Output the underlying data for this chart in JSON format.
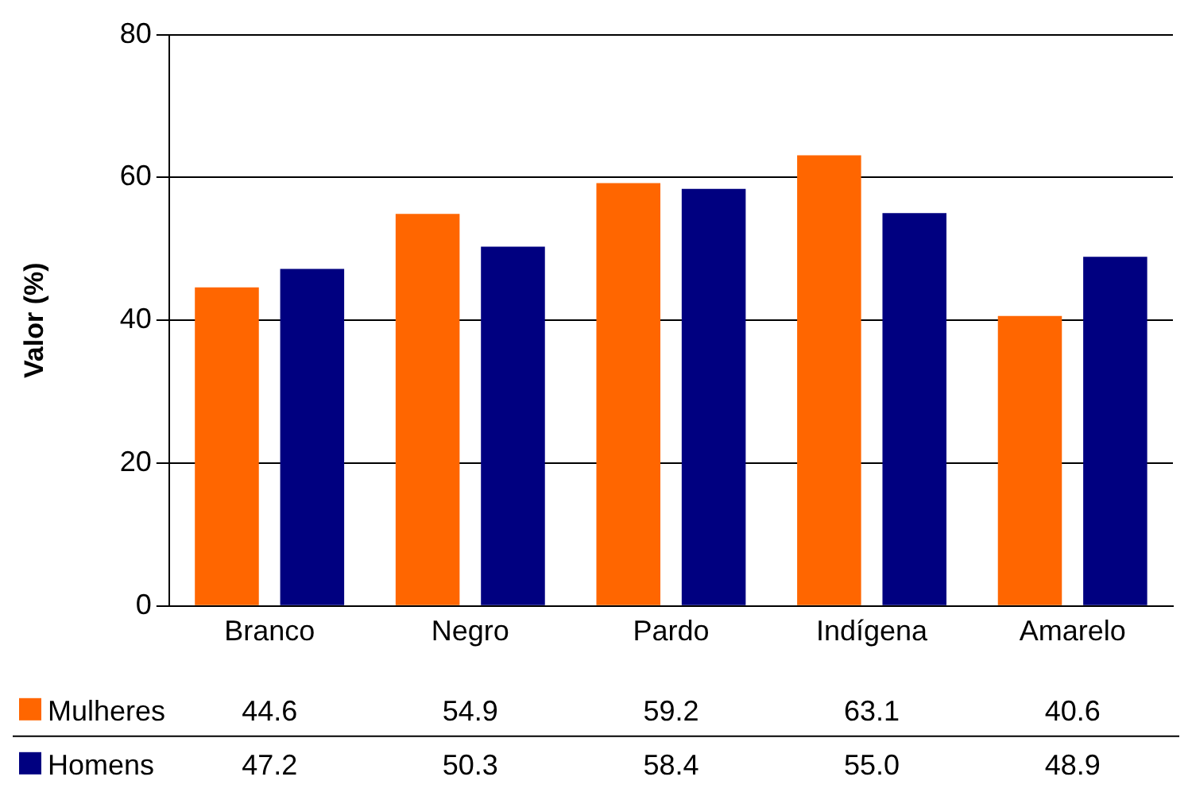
{
  "chart_data": {
    "type": "bar",
    "ylabel": "Valor (%)",
    "categories": [
      "Branco",
      "Negro",
      "Pardo",
      "Indígena",
      "Amarelo"
    ],
    "series": [
      {
        "name": "Mulheres",
        "color": "#ff6600",
        "values": [
          44.6,
          54.9,
          59.2,
          63.1,
          40.6
        ]
      },
      {
        "name": "Homens",
        "color": "#000080",
        "values": [
          47.2,
          50.3,
          58.4,
          55.0,
          48.9
        ],
        "value_labels": [
          "47.2",
          "50.3",
          "58.4",
          "55.0",
          "48.9"
        ]
      }
    ],
    "ylim": [
      0,
      80
    ],
    "yticks": [
      0,
      20,
      40,
      60,
      80
    ],
    "grid": "y",
    "legend": "bottom",
    "data_labels": true
  }
}
